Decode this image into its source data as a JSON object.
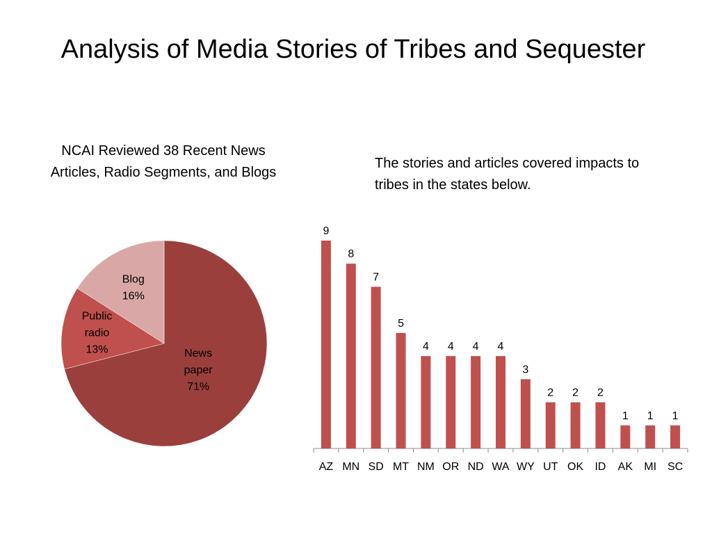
{
  "title": "Analysis of Media Stories of Tribes and Sequester",
  "chart_data": [
    {
      "type": "pie",
      "title_lines": [
        "NCAI Reviewed 38 Recent News",
        "Articles, Radio Segments, and Blogs"
      ],
      "slices": [
        {
          "name_lines": [
            "News",
            "paper"
          ],
          "value": 71,
          "label": "71%",
          "color": "#9b3f3c"
        },
        {
          "name_lines": [
            "Public",
            "radio"
          ],
          "value": 13,
          "label": "13%",
          "color": "#c0504d"
        },
        {
          "name_lines": [
            "Blog"
          ],
          "value": 16,
          "label": "16%",
          "color": "#d9a8a6"
        }
      ]
    },
    {
      "type": "bar",
      "caption_lines": [
        "The stories and articles covered impacts to",
        "tribes in the states below."
      ],
      "categories": [
        "AZ",
        "MN",
        "SD",
        "MT",
        "NM",
        "OR",
        "ND",
        "WA",
        "WY",
        "UT",
        "OK",
        "ID",
        "AK",
        "MI",
        "SC"
      ],
      "values": [
        9,
        8,
        7,
        5,
        4,
        4,
        4,
        4,
        3,
        2,
        2,
        2,
        1,
        1,
        1
      ],
      "color": "#c0504d",
      "ylim": [
        0,
        9
      ],
      "grid": false,
      "data_labels": true
    }
  ]
}
